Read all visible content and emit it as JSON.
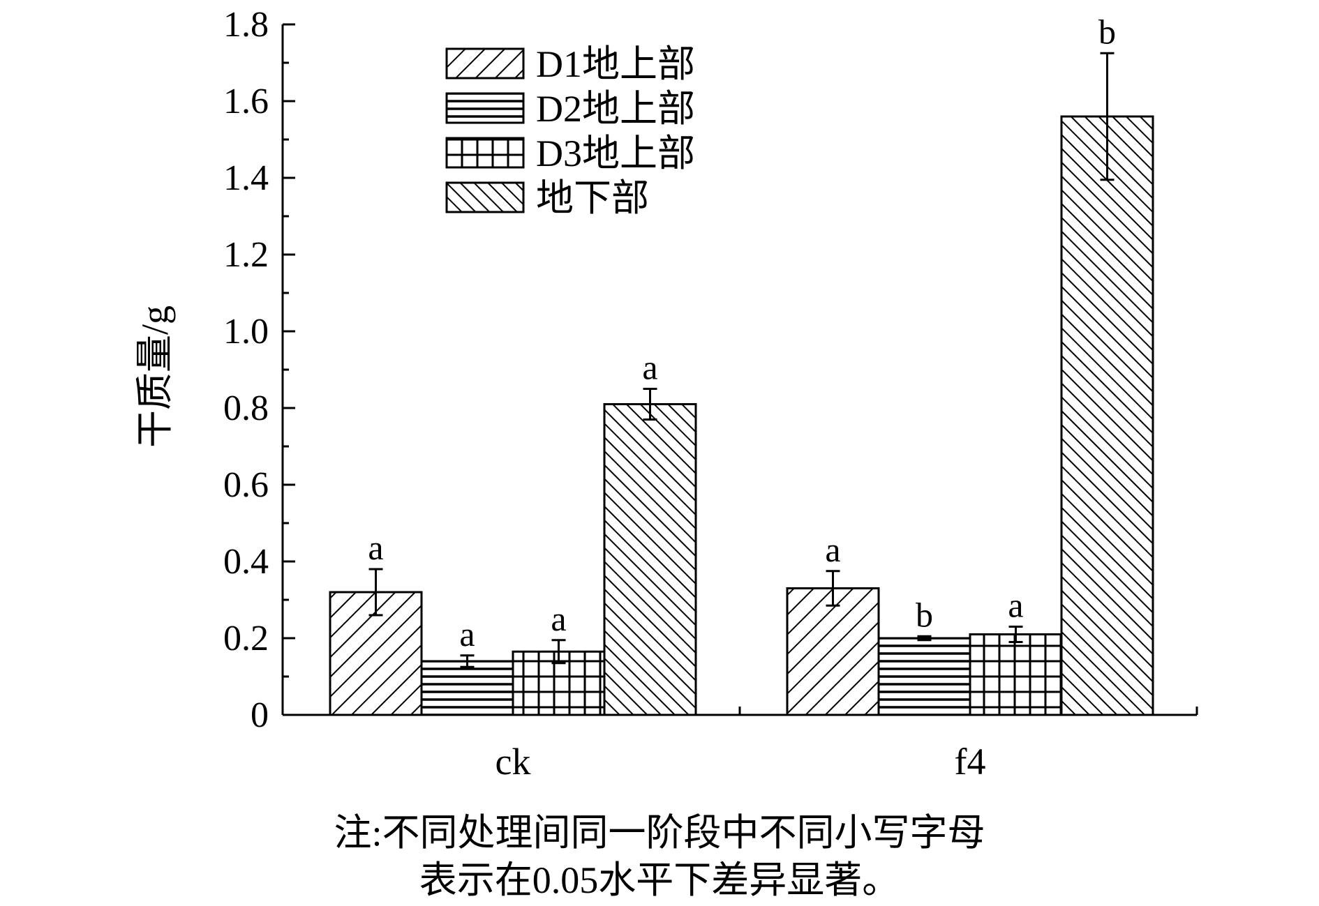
{
  "chart_data": {
    "type": "bar",
    "xlabel": "",
    "ylabel": "干质量/g",
    "ylim": [
      0,
      1.8
    ],
    "yticks": [
      "0",
      "0.2",
      "0.4",
      "0.6",
      "0.8",
      "1.0",
      "1.2",
      "1.4",
      "1.6",
      "1.8"
    ],
    "ytick_values": [
      0,
      0.2,
      0.4,
      0.6,
      0.8,
      1.0,
      1.2,
      1.4,
      1.6,
      1.8
    ],
    "grid": false,
    "legend_position": "top-left",
    "categories": [
      "ck",
      "f4"
    ],
    "series": [
      {
        "name": "D1地上部",
        "pattern": "diag-up",
        "values": [
          0.32,
          0.33
        ],
        "errors": [
          0.06,
          0.045
        ],
        "letters": [
          "a",
          "a"
        ]
      },
      {
        "name": "D2地上部",
        "pattern": "horizontal",
        "values": [
          0.14,
          0.2
        ],
        "errors": [
          0.015,
          0.005
        ],
        "letters": [
          "a",
          "b"
        ]
      },
      {
        "name": "D3地上部",
        "pattern": "grid",
        "values": [
          0.165,
          0.21
        ],
        "errors": [
          0.03,
          0.02
        ],
        "letters": [
          "a",
          "a"
        ]
      },
      {
        "name": "地下部",
        "pattern": "diag-down",
        "values": [
          0.81,
          1.56
        ],
        "errors": [
          0.04,
          0.165
        ],
        "letters": [
          "a",
          "b"
        ]
      }
    ]
  },
  "note": {
    "line1": "注:不同处理间同一阶段中不同小写字母",
    "line2": "表示在0.05水平下差异显著。"
  }
}
